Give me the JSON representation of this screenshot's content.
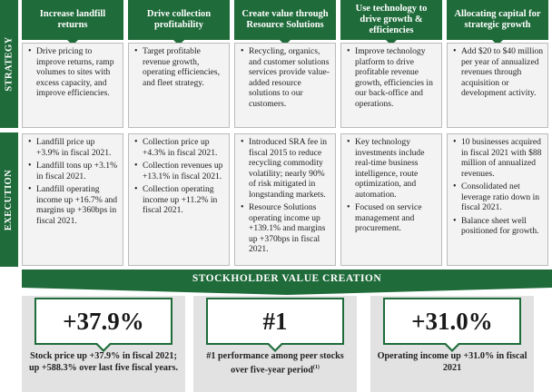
{
  "side_labels": {
    "strategy": "STRATEGY",
    "execution": "EXECUTION"
  },
  "columns": [
    {
      "header": "Increase landfill returns",
      "strategy": [
        "Drive pricing to improve returns, ramp volumes to sites with excess capacity, and improve efficiencies."
      ],
      "execution": [
        "Landfill price up +3.9% in fiscal 2021.",
        "Landfill tons up +3.1% in fiscal 2021.",
        "Landfill operating income up +16.7% and margins up +360bps in fiscal 2021."
      ]
    },
    {
      "header": "Drive collection profitability",
      "strategy": [
        "Target profitable revenue growth, operating efficiencies, and fleet strategy."
      ],
      "execution": [
        "Collection price up +4.3% in fiscal 2021.",
        "Collection revenues up +13.1% in fiscal 2021.",
        "Collection operating income up +11.2% in fiscal 2021."
      ]
    },
    {
      "header": "Create value through Resource Solutions",
      "strategy": [
        "Recycling, organics, and customer solutions services provide value-added resource solutions to our customers."
      ],
      "execution": [
        "Introduced SRA fee in fiscal 2015 to reduce recycling commodity volatility; nearly 90% of risk mitigated in longstanding markets.",
        "Resource Solutions operating income up +139.1% and margins up +370bps in fiscal 2021."
      ]
    },
    {
      "header": "Use technology to drive growth & efficiencies",
      "strategy": [
        "Improve technology platform to drive profitable revenue growth, efficiencies in our back-office and operations."
      ],
      "execution": [
        "Key technology investments include real-time business intelligence, route optimization, and automation.",
        "Focused on service management and procurement."
      ]
    },
    {
      "header": "Allocating capital for strategic growth",
      "strategy": [
        "Add $20 to $40 million per year of annualized revenues through acquisition or development activity."
      ],
      "execution": [
        "10 businesses acquired in fiscal 2021 with $88 million of annualized revenues.",
        "Consolidated net leverage ratio down in fiscal 2021.",
        "Balance sheet well positioned for growth."
      ]
    }
  ],
  "banner": "STOCKHOLDER VALUE CREATION",
  "kpis": [
    {
      "value": "+37.9%",
      "caption": "Stock price up +37.9% in fiscal 2021; up +588.3% over last five fiscal years.",
      "footnote": ""
    },
    {
      "value": "#1",
      "caption": "#1 performance among peer stocks over five-year period",
      "footnote": "(1)"
    },
    {
      "value": "+31.0%",
      "caption": "Operating income up +31.0% in fiscal 2021",
      "footnote": ""
    }
  ],
  "colors": {
    "accent_green": "#1f6b3a",
    "panel_gray": "#e2e2e2"
  }
}
